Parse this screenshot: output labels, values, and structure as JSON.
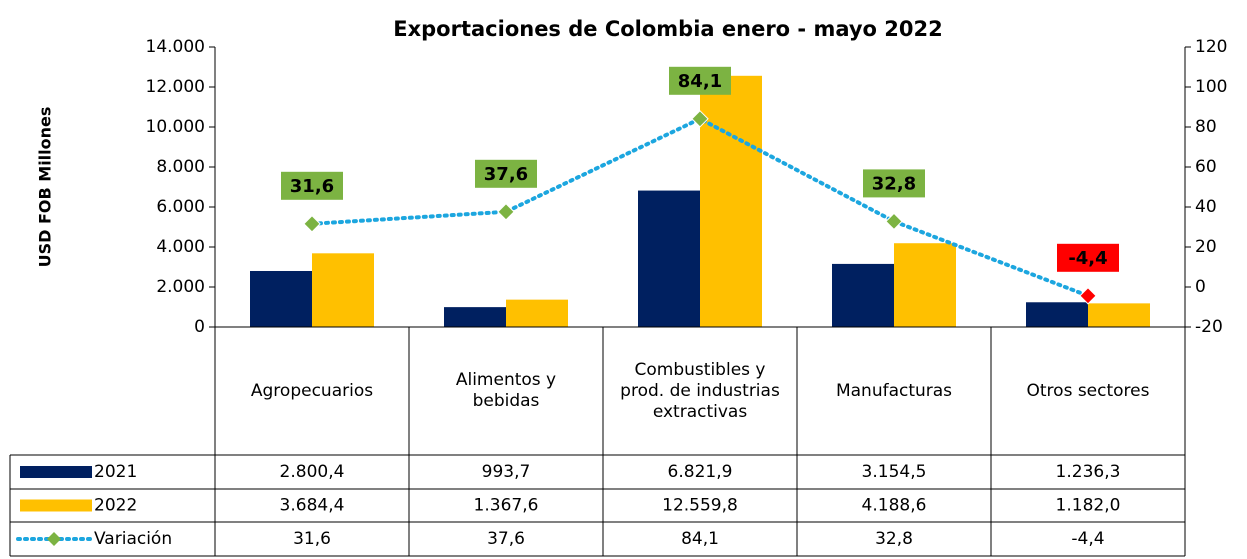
{
  "chart_data": {
    "type": "bar",
    "title": "Exportaciones de Colombia enero - mayo 2022",
    "y_label": "USD FOB Millones",
    "categories": [
      "Agropecuarios",
      "Alimentos y bebidas",
      "Combustibles y prod. de industrias extractivas",
      "Manufacturas",
      "Otros sectores"
    ],
    "series": [
      {
        "name": "2021",
        "type": "bar",
        "color": "#002060",
        "values": [
          2800.4,
          993.7,
          6821.9,
          3154.5,
          1236.3
        ],
        "value_labels": [
          "2.800,4",
          "993,7",
          "6.821,9",
          "3.154,5",
          "1.236,3"
        ]
      },
      {
        "name": "2022",
        "type": "bar",
        "color": "#ffc000",
        "values": [
          3684.4,
          1367.6,
          12559.8,
          4188.6,
          1182.0
        ],
        "value_labels": [
          "3.684,4",
          "1.367,6",
          "12.559,8",
          "4.188,6",
          "1.182,0"
        ]
      },
      {
        "name": "Variación",
        "type": "line",
        "axis": "y2",
        "color": "#1ca6df",
        "marker_color": "#7cb342",
        "negative_color": "#ff0000",
        "values": [
          31.6,
          37.6,
          84.1,
          32.8,
          -4.4
        ],
        "value_labels": [
          "31,6",
          "37,6",
          "84,1",
          "32,8",
          "-4,4"
        ]
      }
    ],
    "ylim": [
      0,
      14000
    ],
    "yticks": [
      0,
      {
        "value": 2000,
        "label": "2.000"
      },
      {
        "value": 4000,
        "label": "4.000"
      },
      {
        "value": 6000,
        "label": "6.000"
      },
      {
        "value": 8000,
        "label": "8.000"
      },
      {
        "value": 10000,
        "label": "10.000"
      },
      {
        "value": 12000,
        "label": "12.000"
      },
      {
        "value": 14000,
        "label": "14.000"
      }
    ],
    "y2lim": [
      -20,
      120
    ],
    "y2ticks": [
      -20,
      0,
      20,
      40,
      60,
      80,
      100,
      120
    ]
  }
}
